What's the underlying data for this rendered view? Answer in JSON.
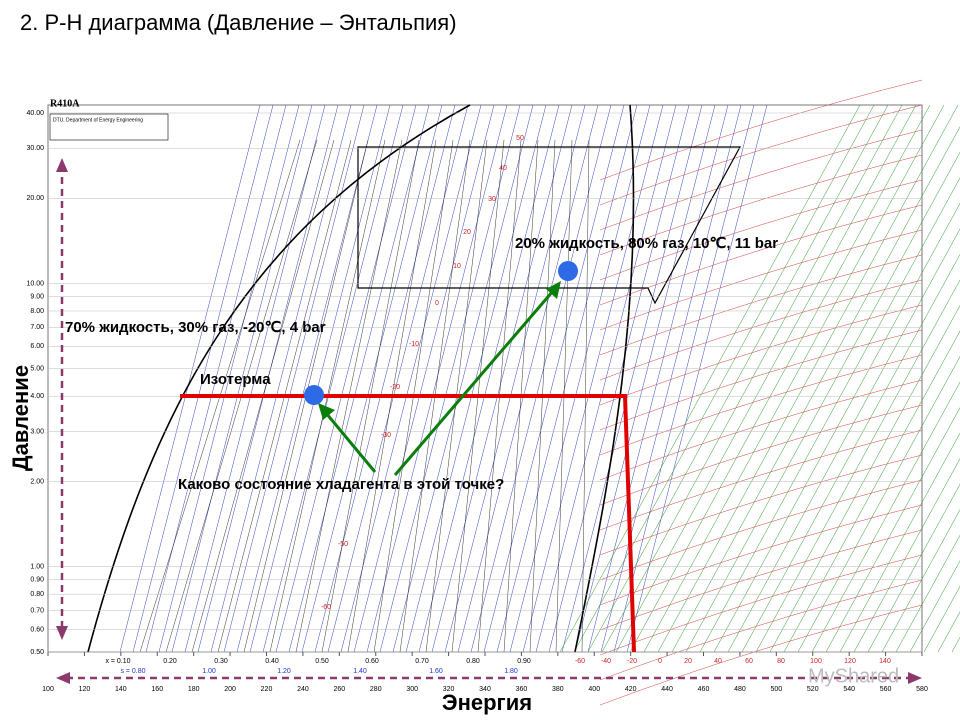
{
  "header": {
    "title": "2. P-H диаграмма (Давление – Энтальпия)"
  },
  "diagram": {
    "refrigerant": "R410A",
    "source": "DTU, Department of Energy Engineering",
    "y_axis_label": "Давление",
    "x_axis_label": "Энергия",
    "yticks": [
      {
        "value": 40,
        "label": "40.00"
      },
      {
        "value": 30,
        "label": "30.00"
      },
      {
        "value": 20,
        "label": "20.00"
      },
      {
        "value": 10,
        "label": "10.00"
      },
      {
        "value": 9,
        "label": "9.00"
      },
      {
        "value": 8,
        "label": "8.00"
      },
      {
        "value": 7,
        "label": "7.00"
      },
      {
        "value": 6,
        "label": "6.00"
      },
      {
        "value": 5,
        "label": "5.00"
      },
      {
        "value": 4,
        "label": "4.00"
      },
      {
        "value": 3,
        "label": "3.00"
      },
      {
        "value": 2,
        "label": "2.00"
      },
      {
        "value": 1,
        "label": "1.00"
      },
      {
        "value": 0.9,
        "label": "0.90"
      },
      {
        "value": 0.8,
        "label": "0.80"
      },
      {
        "value": 0.7,
        "label": "0.70"
      },
      {
        "value": 0.6,
        "label": "0.60"
      },
      {
        "value": 0.5,
        "label": "0.50"
      }
    ],
    "xticks": [
      100,
      120,
      140,
      160,
      180,
      200,
      220,
      240,
      260,
      280,
      300,
      320,
      340,
      360,
      380,
      400,
      420,
      440,
      460,
      480,
      500,
      520,
      540,
      560,
      580
    ],
    "quality_labels": [
      "x = 0.10",
      "0.20",
      "0.30",
      "0.40",
      "0.50",
      "0.60",
      "0.70",
      "0.80",
      "0.90"
    ],
    "entropy_labels": [
      "s = 0.80",
      "1.00",
      "1.20",
      "1.40",
      "1.60",
      "1.80"
    ],
    "temperature_row": [
      "-60",
      "-40",
      "-20",
      "0",
      "20",
      "40",
      "60",
      "80",
      "100",
      "120",
      "140"
    ],
    "temperature_labels": [
      "50",
      "40",
      "30",
      "20",
      "10",
      "0",
      "-10",
      "-20",
      "-30",
      "-50",
      "-60"
    ],
    "annotations": {
      "point_high": "20% жидкость, 80% газ, 10℃, 11 bar",
      "point_low": "70% жидкость, 30% газ, -20℃, 4 bar",
      "isotherm": "Изотерма",
      "question": "Каково состояние хладагента в этой точке?"
    },
    "watermark": "MyShared"
  }
}
